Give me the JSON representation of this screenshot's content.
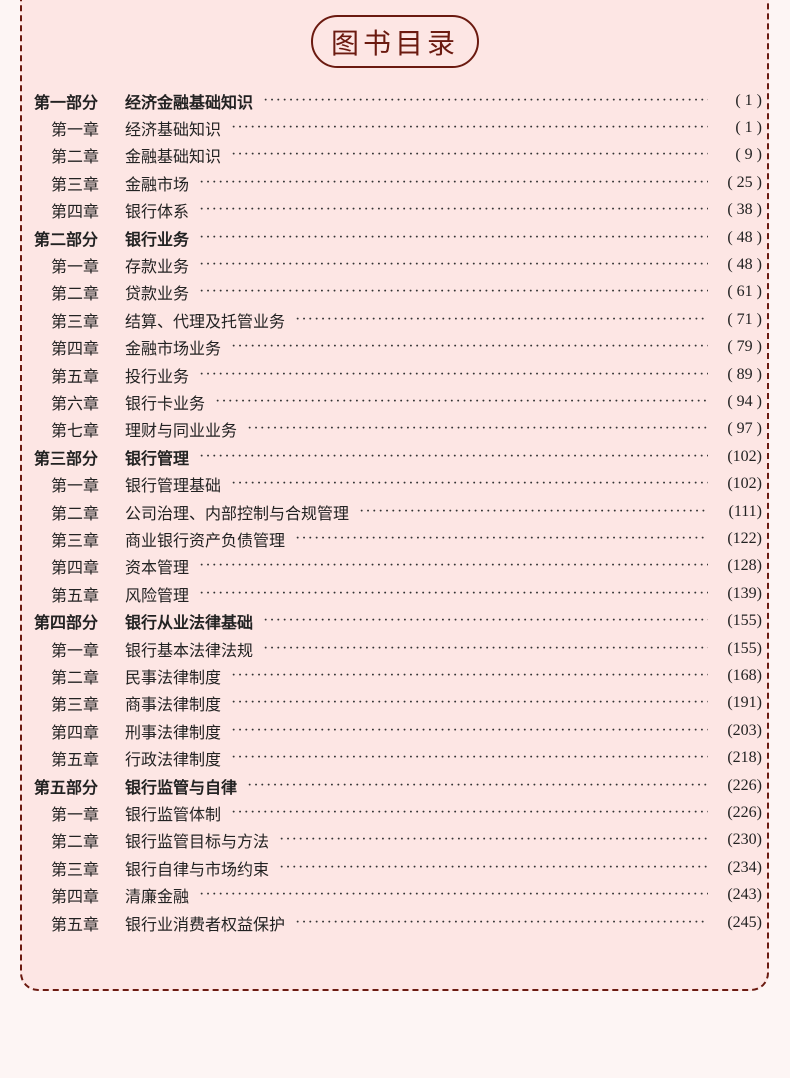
{
  "title": "图书目录",
  "entries": [
    {
      "level": "part",
      "prefix": "第一部分",
      "title": "经济金融基础知识",
      "page": "( 1 )"
    },
    {
      "level": "chapter",
      "prefix": "第一章",
      "title": "经济基础知识",
      "page": "( 1 )"
    },
    {
      "level": "chapter",
      "prefix": "第二章",
      "title": "金融基础知识",
      "page": "( 9 )"
    },
    {
      "level": "chapter",
      "prefix": "第三章",
      "title": "金融市场",
      "page": "( 25 )"
    },
    {
      "level": "chapter",
      "prefix": "第四章",
      "title": "银行体系",
      "page": "( 38 )"
    },
    {
      "level": "part",
      "prefix": "第二部分",
      "title": "银行业务",
      "page": "( 48 )"
    },
    {
      "level": "chapter",
      "prefix": "第一章",
      "title": "存款业务",
      "page": "( 48 )"
    },
    {
      "level": "chapter",
      "prefix": "第二章",
      "title": "贷款业务",
      "page": "( 61 )"
    },
    {
      "level": "chapter",
      "prefix": "第三章",
      "title": "结算、代理及托管业务",
      "page": "( 71 )"
    },
    {
      "level": "chapter",
      "prefix": "第四章",
      "title": "金融市场业务",
      "page": "( 79 )"
    },
    {
      "level": "chapter",
      "prefix": "第五章",
      "title": "投行业务",
      "page": "( 89 )"
    },
    {
      "level": "chapter",
      "prefix": "第六章",
      "title": "银行卡业务",
      "page": "( 94 )"
    },
    {
      "level": "chapter",
      "prefix": "第七章",
      "title": "理财与同业业务",
      "page": "( 97 )"
    },
    {
      "level": "part",
      "prefix": "第三部分",
      "title": "银行管理",
      "page": "(102)"
    },
    {
      "level": "chapter",
      "prefix": "第一章",
      "title": "银行管理基础",
      "page": "(102)"
    },
    {
      "level": "chapter",
      "prefix": "第二章",
      "title": "公司治理、内部控制与合规管理",
      "page": "(111)"
    },
    {
      "level": "chapter",
      "prefix": "第三章",
      "title": "商业银行资产负债管理",
      "page": "(122)"
    },
    {
      "level": "chapter",
      "prefix": "第四章",
      "title": "资本管理",
      "page": "(128)"
    },
    {
      "level": "chapter",
      "prefix": "第五章",
      "title": "风险管理",
      "page": "(139)"
    },
    {
      "level": "part",
      "prefix": "第四部分",
      "title": "银行从业法律基础",
      "page": "(155)"
    },
    {
      "level": "chapter",
      "prefix": "第一章",
      "title": "银行基本法律法规",
      "page": "(155)"
    },
    {
      "level": "chapter",
      "prefix": "第二章",
      "title": "民事法律制度",
      "page": "(168)"
    },
    {
      "level": "chapter",
      "prefix": "第三章",
      "title": "商事法律制度",
      "page": "(191)"
    },
    {
      "level": "chapter",
      "prefix": "第四章",
      "title": "刑事法律制度",
      "page": "(203)"
    },
    {
      "level": "chapter",
      "prefix": "第五章",
      "title": "行政法律制度",
      "page": "(218)"
    },
    {
      "level": "part",
      "prefix": "第五部分",
      "title": "银行监管与自律",
      "page": "(226)"
    },
    {
      "level": "chapter",
      "prefix": "第一章",
      "title": "银行监管体制",
      "page": "(226)"
    },
    {
      "level": "chapter",
      "prefix": "第二章",
      "title": "银行监管目标与方法",
      "page": "(230)"
    },
    {
      "level": "chapter",
      "prefix": "第三章",
      "title": "银行自律与市场约束",
      "page": "(234)"
    },
    {
      "level": "chapter",
      "prefix": "第四章",
      "title": "清廉金融",
      "page": "(243)"
    },
    {
      "level": "chapter",
      "prefix": "第五章",
      "title": "银行业消费者权益保护",
      "page": "(245)"
    }
  ]
}
